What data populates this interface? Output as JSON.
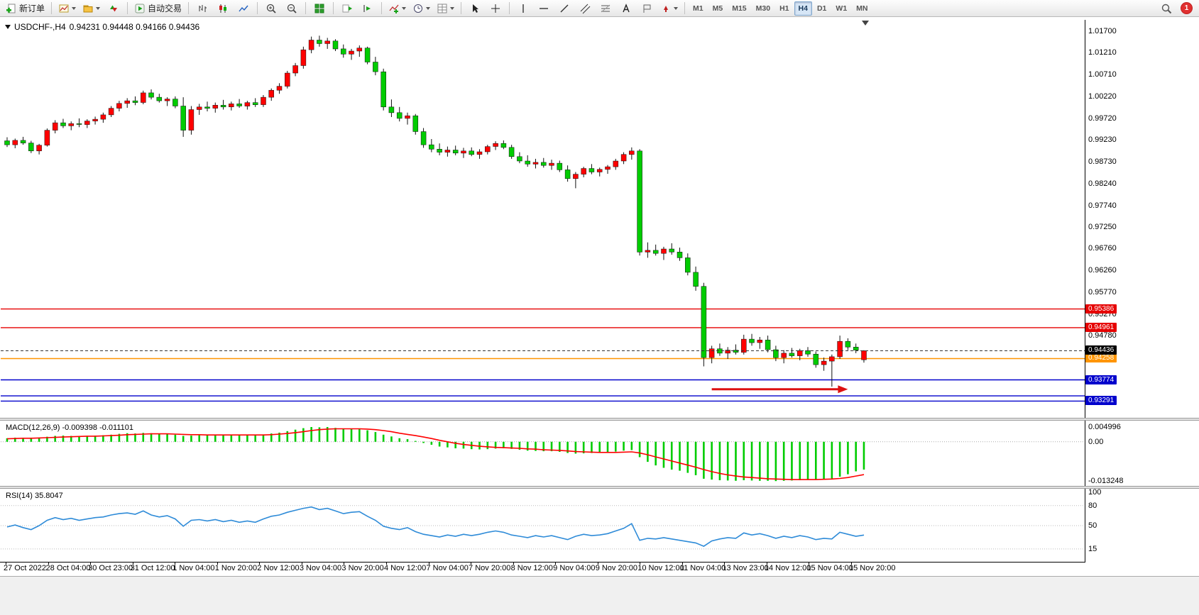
{
  "toolbar": {
    "new_order": "新订单",
    "autotrading": "自动交易",
    "timeframes": [
      "M1",
      "M5",
      "M15",
      "M30",
      "H1",
      "H4",
      "D1",
      "W1",
      "MN"
    ],
    "active_timeframe": "H4",
    "notification_badge": "1",
    "icons": [
      "new-order",
      "new-chart",
      "profiles",
      "market-watch",
      "autotrading",
      "bar-chart",
      "candle-chart",
      "line-chart",
      "zoom-in",
      "zoom-out",
      "tile-windows",
      "auto-scroll",
      "chart-shift",
      "indicators",
      "periods",
      "templates",
      "cursor",
      "crosshair",
      "vertical-line",
      "horizontal-line",
      "trendline",
      "channel",
      "fibonacci",
      "text",
      "text-label",
      "arrows",
      "search"
    ]
  },
  "chart": {
    "symbol_period": "USDCHF-,H4",
    "ohlc_text": "0.94231 0.94448 0.94166 0.94436"
  },
  "indicators": {
    "macd_label": "MACD(12,26,9) -0.009398 -0.011101",
    "rsi_label": "RSI(14) 35.8047"
  },
  "chart_data": [
    {
      "type": "candlestick",
      "symbol": "USDCHF-",
      "timeframe": "H4",
      "ohlc_current": {
        "open": 0.94231,
        "high": 0.94448,
        "low": 0.94166,
        "close": 0.94436
      },
      "ylim": [
        0.92895,
        1.0196
      ],
      "colors": {
        "up": "#ff0000",
        "down": "#00cc00",
        "wick": "#111111"
      },
      "price_axis_labels": [
        "1.01700",
        "1.01210",
        "1.00710",
        "1.00220",
        "0.99720",
        "0.99230",
        "0.98730",
        "0.98240",
        "0.97740",
        "0.97250",
        "0.96760",
        "0.96260",
        "0.95770",
        "0.95270",
        "0.94780"
      ],
      "current_price": {
        "value": 0.94436,
        "label": "0.94436",
        "color": "#000000"
      },
      "hlines": [
        {
          "value": 0.95386,
          "color": "#e60000",
          "label": "0.95386",
          "show_label": true
        },
        {
          "value": 0.94961,
          "color": "#e60000",
          "label": "0.94961",
          "show_label": true
        },
        {
          "value": 0.94258,
          "color": "#ff9500",
          "label": "0.94258",
          "show_label": true
        },
        {
          "value": 0.93774,
          "color": "#0000cc",
          "label": "0.93774",
          "show_label": true
        },
        {
          "value": 0.93409,
          "color": "#0000cc",
          "label": "",
          "show_label": false
        },
        {
          "value": 0.93291,
          "color": "#0000cc",
          "label": "0.93291",
          "show_label": true
        }
      ],
      "arrow": {
        "start_candle": 88,
        "end_candle": 105,
        "price": 0.9356,
        "color": "#dd1111"
      },
      "x_labels": [
        "27 Oct 2022",
        "28 Oct 04:00",
        "30 Oct 23:00",
        "31 Oct 12:00",
        "1 Nov 04:00",
        "1 Nov 20:00",
        "2 Nov 12:00",
        "3 Nov 04:00",
        "3 Nov 20:00",
        "4 Nov 12:00",
        "7 Nov 04:00",
        "7 Nov 20:00",
        "8 Nov 12:00",
        "9 Nov 04:00",
        "9 Nov 20:00",
        "10 Nov 12:00",
        "11 Nov 04:00",
        "13 Nov 23:00",
        "14 Nov 12:00",
        "15 Nov 04:00",
        "15 Nov 20:00"
      ],
      "candles": [
        [
          0.9921,
          0.9929,
          0.9907,
          0.9912
        ],
        [
          0.9912,
          0.9926,
          0.9904,
          0.9922
        ],
        [
          0.9922,
          0.993,
          0.9912,
          0.9916
        ],
        [
          0.9916,
          0.9921,
          0.9893,
          0.9898
        ],
        [
          0.9898,
          0.9914,
          0.989,
          0.9911
        ],
        [
          0.9911,
          0.9949,
          0.9908,
          0.9945
        ],
        [
          0.9945,
          0.9968,
          0.9938,
          0.9962
        ],
        [
          0.9962,
          0.9971,
          0.995,
          0.9955
        ],
        [
          0.9955,
          0.9965,
          0.9945,
          0.996
        ],
        [
          0.996,
          0.9972,
          0.9952,
          0.9958
        ],
        [
          0.9958,
          0.997,
          0.995,
          0.9966
        ],
        [
          0.9966,
          0.9976,
          0.9958,
          0.997
        ],
        [
          0.997,
          0.9985,
          0.9962,
          0.998
        ],
        [
          0.998,
          1.0,
          0.9975,
          0.9995
        ],
        [
          0.9995,
          1.0012,
          0.9988,
          1.0006
        ],
        [
          1.0006,
          1.0018,
          0.9996,
          1.0012
        ],
        [
          1.0012,
          1.0022,
          1.0002,
          1.0008
        ],
        [
          1.0008,
          1.0035,
          1.0004,
          1.003
        ],
        [
          1.003,
          1.0038,
          1.0015,
          1.002
        ],
        [
          1.002,
          1.0028,
          1.0008,
          1.0012
        ],
        [
          1.0012,
          1.002,
          1.0,
          1.0016
        ],
        [
          1.0016,
          1.0022,
          0.9995,
          1.0
        ],
        [
          1.0,
          1.002,
          0.993,
          0.9945
        ],
        [
          0.9945,
          1.0,
          0.9935,
          0.9992
        ],
        [
          0.9992,
          1.0005,
          0.998,
          0.9998
        ],
        [
          0.9998,
          1.001,
          0.9988,
          0.9995
        ],
        [
          0.9995,
          1.0008,
          0.9985,
          1.0002
        ],
        [
          1.0002,
          1.0014,
          0.9992,
          0.9998
        ],
        [
          0.9998,
          1.001,
          0.999,
          1.0005
        ],
        [
          1.0005,
          1.0016,
          0.9996,
          1.0
        ],
        [
          1.0,
          1.0012,
          0.9992,
          1.0008
        ],
        [
          1.0008,
          1.0018,
          0.9998,
          1.0003
        ],
        [
          1.0003,
          1.0025,
          0.9998,
          1.002
        ],
        [
          1.002,
          1.004,
          1.0012,
          1.0036
        ],
        [
          1.0036,
          1.0052,
          1.0028,
          1.0045
        ],
        [
          1.0045,
          1.008,
          1.004,
          1.0075
        ],
        [
          1.0075,
          1.0098,
          1.0068,
          1.0092
        ],
        [
          1.0092,
          1.0135,
          1.0085,
          1.0128
        ],
        [
          1.0128,
          1.0158,
          1.012,
          1.015
        ],
        [
          1.015,
          1.016,
          1.0135,
          1.0142
        ],
        [
          1.0142,
          1.0155,
          1.013,
          1.0148
        ],
        [
          1.0148,
          1.0152,
          1.0125,
          1.013
        ],
        [
          1.013,
          1.014,
          1.011,
          1.0118
        ],
        [
          1.0118,
          1.013,
          1.0105,
          1.0125
        ],
        [
          1.0125,
          1.0138,
          1.0112,
          1.0132
        ],
        [
          1.0132,
          1.0135,
          1.0095,
          1.01
        ],
        [
          1.01,
          1.0112,
          1.007,
          1.0078
        ],
        [
          1.0078,
          1.0085,
          0.999,
          0.9998
        ],
        [
          0.9998,
          1.0015,
          0.9975,
          0.9985
        ],
        [
          0.9985,
          0.9998,
          0.9965,
          0.9972
        ],
        [
          0.9972,
          0.9985,
          0.9958,
          0.9978
        ],
        [
          0.9978,
          0.9982,
          0.9935,
          0.9942
        ],
        [
          0.9942,
          0.995,
          0.9905,
          0.9912
        ],
        [
          0.9912,
          0.9925,
          0.9895,
          0.9902
        ],
        [
          0.9902,
          0.9915,
          0.9888,
          0.9895
        ],
        [
          0.9895,
          0.9908,
          0.9885,
          0.99
        ],
        [
          0.99,
          0.991,
          0.9888,
          0.9893
        ],
        [
          0.9893,
          0.9905,
          0.9882,
          0.9898
        ],
        [
          0.9898,
          0.9906,
          0.9886,
          0.989
        ],
        [
          0.989,
          0.9902,
          0.988,
          0.9896
        ],
        [
          0.9896,
          0.9912,
          0.989,
          0.9908
        ],
        [
          0.9908,
          0.992,
          0.99,
          0.9915
        ],
        [
          0.9915,
          0.9922,
          0.9902,
          0.9906
        ],
        [
          0.9906,
          0.9912,
          0.988,
          0.9885
        ],
        [
          0.9885,
          0.9895,
          0.987,
          0.9875
        ],
        [
          0.9875,
          0.9888,
          0.9862,
          0.9868
        ],
        [
          0.9868,
          0.988,
          0.9858,
          0.9872
        ],
        [
          0.9872,
          0.9882,
          0.986,
          0.9865
        ],
        [
          0.9865,
          0.9878,
          0.9855,
          0.987
        ],
        [
          0.987,
          0.9876,
          0.985,
          0.9855
        ],
        [
          0.9855,
          0.9865,
          0.9828,
          0.9835
        ],
        [
          0.9835,
          0.985,
          0.9813,
          0.9845
        ],
        [
          0.9845,
          0.9862,
          0.9838,
          0.9858
        ],
        [
          0.9858,
          0.9868,
          0.9845,
          0.985
        ],
        [
          0.985,
          0.986,
          0.984,
          0.9856
        ],
        [
          0.9856,
          0.9866,
          0.9846,
          0.9862
        ],
        [
          0.9862,
          0.988,
          0.9855,
          0.9875
        ],
        [
          0.9875,
          0.9895,
          0.9868,
          0.989
        ],
        [
          0.989,
          0.9906,
          0.9878,
          0.9898
        ],
        [
          0.9898,
          0.9902,
          0.966,
          0.9668
        ],
        [
          0.9668,
          0.969,
          0.9655,
          0.9672
        ],
        [
          0.9672,
          0.9685,
          0.966,
          0.9665
        ],
        [
          0.9665,
          0.968,
          0.965,
          0.9675
        ],
        [
          0.9675,
          0.9688,
          0.9662,
          0.9668
        ],
        [
          0.9668,
          0.9678,
          0.9648,
          0.9655
        ],
        [
          0.9655,
          0.9665,
          0.9615,
          0.9622
        ],
        [
          0.9622,
          0.9635,
          0.958,
          0.959
        ],
        [
          0.959,
          0.9598,
          0.9408,
          0.9428
        ],
        [
          0.9428,
          0.9455,
          0.9415,
          0.9448
        ],
        [
          0.9448,
          0.946,
          0.9432,
          0.9438
        ],
        [
          0.9438,
          0.9452,
          0.9425,
          0.9445
        ],
        [
          0.9445,
          0.9458,
          0.9435,
          0.944
        ],
        [
          0.944,
          0.948,
          0.9435,
          0.947
        ],
        [
          0.947,
          0.9482,
          0.9455,
          0.9462
        ],
        [
          0.9462,
          0.9475,
          0.9448,
          0.9468
        ],
        [
          0.9468,
          0.9478,
          0.944,
          0.9446
        ],
        [
          0.9446,
          0.9455,
          0.942,
          0.9428
        ],
        [
          0.9428,
          0.9445,
          0.9415,
          0.9438
        ],
        [
          0.9438,
          0.945,
          0.9428,
          0.9432
        ],
        [
          0.9432,
          0.9448,
          0.9422,
          0.9444
        ],
        [
          0.9444,
          0.9452,
          0.943,
          0.9436
        ],
        [
          0.9436,
          0.9442,
          0.9405,
          0.9412
        ],
        [
          0.9412,
          0.9428,
          0.9398,
          0.942
        ],
        [
          0.942,
          0.9435,
          0.9362,
          0.943
        ],
        [
          0.943,
          0.9478,
          0.9425,
          0.9465
        ],
        [
          0.9465,
          0.9472,
          0.9445,
          0.9452
        ],
        [
          0.9452,
          0.946,
          0.9438,
          0.9445
        ],
        [
          0.94231,
          0.94448,
          0.94166,
          0.94436
        ]
      ]
    },
    {
      "type": "bar",
      "name": "MACD(12,26,9)",
      "last_values": [
        -0.009398,
        -0.011101
      ],
      "ylim": [
        -0.013248,
        0.004996
      ],
      "colors": {
        "histogram": "#00cc00",
        "signal": "#ff0000"
      },
      "axis_labels": [
        {
          "label": "0.004996",
          "value": 0.004996
        },
        {
          "label": "0.00",
          "value": 0
        },
        {
          "label": "-0.013248",
          "value": -0.013248
        }
      ],
      "values": [
        0.0012,
        0.0014,
        0.0013,
        0.0011,
        0.0014,
        0.0017,
        0.002,
        0.0021,
        0.002,
        0.0019,
        0.002,
        0.0021,
        0.0022,
        0.0024,
        0.0027,
        0.0029,
        0.0028,
        0.003,
        0.0029,
        0.0027,
        0.0026,
        0.0024,
        0.002,
        0.0021,
        0.0022,
        0.0022,
        0.0023,
        0.0022,
        0.0023,
        0.0022,
        0.0023,
        0.0022,
        0.0025,
        0.0028,
        0.0031,
        0.0036,
        0.0041,
        0.0046,
        0.005,
        0.0049,
        0.005,
        0.0047,
        0.0044,
        0.0043,
        0.0043,
        0.0039,
        0.0033,
        0.0024,
        0.0018,
        0.0012,
        0.0009,
        0.0003,
        -0.0004,
        -0.001,
        -0.0016,
        -0.0019,
        -0.0022,
        -0.0023,
        -0.0025,
        -0.0026,
        -0.0025,
        -0.0023,
        -0.0022,
        -0.0024,
        -0.0027,
        -0.003,
        -0.0031,
        -0.0032,
        -0.0032,
        -0.0034,
        -0.0038,
        -0.004,
        -0.0039,
        -0.0038,
        -0.0037,
        -0.0035,
        -0.0033,
        -0.003,
        -0.0028,
        -0.0052,
        -0.0068,
        -0.008,
        -0.0088,
        -0.0094,
        -0.0098,
        -0.0105,
        -0.0113,
        -0.0125,
        -0.0128,
        -0.013,
        -0.0131,
        -0.0132,
        -0.013,
        -0.0131,
        -0.0132,
        -0.0132,
        -0.0133,
        -0.0132,
        -0.0131,
        -0.013,
        -0.0129,
        -0.0128,
        -0.0126,
        -0.0124,
        -0.0118,
        -0.011,
        -0.01,
        -0.009398
      ],
      "signal": [
        0.001,
        0.0011,
        0.0012,
        0.0012,
        0.0013,
        0.0014,
        0.0015,
        0.0016,
        0.0017,
        0.0018,
        0.0019,
        0.0019,
        0.002,
        0.0021,
        0.0022,
        0.0024,
        0.0025,
        0.0026,
        0.0027,
        0.0027,
        0.0027,
        0.0026,
        0.0025,
        0.0024,
        0.0024,
        0.0023,
        0.0023,
        0.0023,
        0.0023,
        0.0023,
        0.0023,
        0.0023,
        0.0023,
        0.0024,
        0.0026,
        0.0028,
        0.0031,
        0.0034,
        0.0038,
        0.0041,
        0.0043,
        0.0044,
        0.0044,
        0.0044,
        0.0044,
        0.0043,
        0.0041,
        0.0038,
        0.0034,
        0.0029,
        0.0025,
        0.0021,
        0.0016,
        0.0011,
        0.0005,
        0.0,
        -0.0005,
        -0.0009,
        -0.0012,
        -0.0015,
        -0.0017,
        -0.0019,
        -0.002,
        -0.0021,
        -0.0022,
        -0.0024,
        -0.0025,
        -0.0027,
        -0.0028,
        -0.0029,
        -0.0031,
        -0.0033,
        -0.0034,
        -0.0035,
        -0.0036,
        -0.0036,
        -0.0036,
        -0.0035,
        -0.0034,
        -0.0038,
        -0.0044,
        -0.0051,
        -0.0058,
        -0.0065,
        -0.0072,
        -0.0079,
        -0.0086,
        -0.0094,
        -0.0101,
        -0.0107,
        -0.0112,
        -0.0116,
        -0.0119,
        -0.0121,
        -0.0123,
        -0.0125,
        -0.0126,
        -0.0127,
        -0.0128,
        -0.0128,
        -0.0128,
        -0.0128,
        -0.0127,
        -0.0126,
        -0.0124,
        -0.0121,
        -0.0116,
        -0.011101
      ]
    },
    {
      "type": "line",
      "name": "RSI(14)",
      "last_value": 35.8047,
      "ylim": [
        0,
        100
      ],
      "levels": [
        80,
        50,
        15
      ],
      "colors": {
        "line": "#2e8bd8",
        "levels": "#bbbbbb"
      },
      "axis_labels": [
        {
          "label": "100",
          "value": 100
        },
        {
          "label": "80",
          "value": 80
        },
        {
          "label": "50",
          "value": 50
        },
        {
          "label": "15",
          "value": 15
        }
      ],
      "values": [
        48,
        51,
        47,
        44,
        50,
        58,
        62,
        59,
        61,
        58,
        60,
        62,
        63,
        66,
        68,
        69,
        67,
        72,
        66,
        63,
        65,
        60,
        49,
        58,
        59,
        57,
        59,
        56,
        58,
        55,
        57,
        55,
        60,
        64,
        66,
        70,
        73,
        76,
        78,
        74,
        76,
        72,
        68,
        70,
        71,
        64,
        58,
        49,
        46,
        44,
        47,
        41,
        37,
        35,
        33,
        36,
        34,
        37,
        35,
        37,
        40,
        42,
        40,
        36,
        34,
        32,
        35,
        33,
        35,
        32,
        29,
        34,
        37,
        35,
        36,
        38,
        42,
        46,
        53,
        28,
        31,
        30,
        32,
        30,
        28,
        26,
        24,
        19,
        27,
        30,
        32,
        31,
        39,
        36,
        38,
        35,
        31,
        34,
        32,
        35,
        33,
        29,
        31,
        30,
        40,
        37,
        34,
        35.8047
      ]
    }
  ]
}
